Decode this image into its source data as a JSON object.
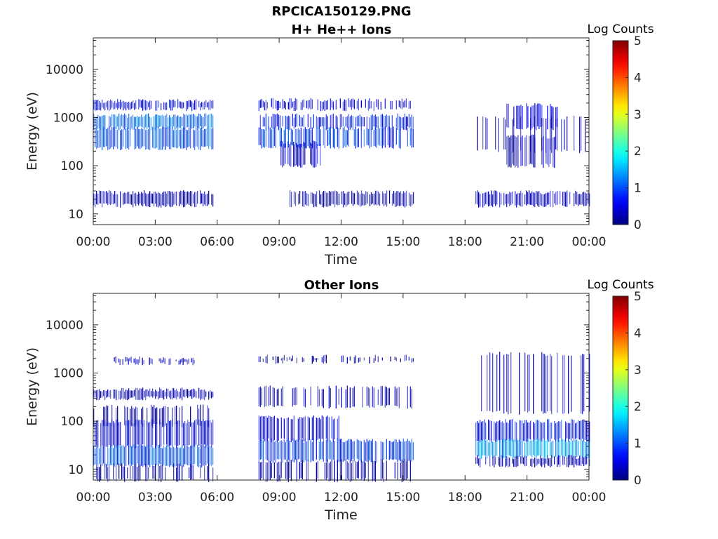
{
  "figure": {
    "title_line1": "RPCICA150129.PNG",
    "title_line2": "H+ He++ Ions"
  },
  "colormap": "jet",
  "chart_data": [
    {
      "type": "heatmap",
      "title": "H+ He++ Ions",
      "xlabel": "Time",
      "ylabel": "Energy (eV)",
      "y_scale": "log",
      "ylim": [
        6,
        45000
      ],
      "y_ticks": [
        "10",
        "100",
        "1000",
        "10000"
      ],
      "x_ticks": [
        "00:00",
        "03:00",
        "06:00",
        "09:00",
        "12:00",
        "15:00",
        "18:00",
        "21:00",
        "00:00"
      ],
      "xlim_hours": [
        0,
        24
      ],
      "colorbar": {
        "label": "Log Counts",
        "range": [
          0,
          5
        ],
        "ticks": [
          "0",
          "1",
          "2",
          "3",
          "4",
          "5"
        ]
      },
      "data_gaps_hours": [
        [
          5.8,
          8.0
        ],
        [
          15.5,
          18.5
        ]
      ],
      "bands": [
        {
          "t": [
            0.0,
            5.8
          ],
          "e": [
            1500,
            2200
          ],
          "level": 0.6,
          "density": 0.85
        },
        {
          "t": [
            0.0,
            5.8
          ],
          "e": [
            600,
            1100
          ],
          "level": 1.1,
          "density": 0.95
        },
        {
          "t": [
            0.0,
            5.8
          ],
          "e": [
            230,
            600
          ],
          "level": 1.0,
          "density": 0.9
        },
        {
          "t": [
            0.0,
            5.8
          ],
          "e": [
            15,
            28
          ],
          "level": 0.3,
          "density": 0.95
        },
        {
          "t": [
            8.0,
            15.5
          ],
          "e": [
            1500,
            2300
          ],
          "level": 0.5,
          "density": 0.6
        },
        {
          "t": [
            8.0,
            15.5
          ],
          "e": [
            600,
            1100
          ],
          "level": 0.7,
          "density": 0.8
        },
        {
          "t": [
            8.0,
            15.5
          ],
          "e": [
            250,
            600
          ],
          "level": 0.9,
          "density": 0.7
        },
        {
          "t": [
            9.0,
            11.0
          ],
          "e": [
            100,
            300
          ],
          "level": 0.3,
          "density": 0.6
        },
        {
          "t": [
            9.5,
            15.5
          ],
          "e": [
            15,
            28
          ],
          "level": 0.2,
          "density": 0.9
        },
        {
          "t": [
            18.5,
            24.0
          ],
          "e": [
            15,
            28
          ],
          "level": 0.4,
          "density": 0.9
        },
        {
          "t": [
            20.0,
            22.5
          ],
          "e": [
            100,
            400
          ],
          "level": 0.3,
          "density": 0.7
        },
        {
          "t": [
            20.0,
            22.5
          ],
          "e": [
            600,
            1800
          ],
          "level": 0.5,
          "density": 0.7
        },
        {
          "t": [
            18.5,
            24.0
          ],
          "e": [
            200,
            1000
          ],
          "level": 0.2,
          "density": 0.35
        }
      ]
    },
    {
      "type": "heatmap",
      "title": "Other Ions",
      "xlabel": "Time",
      "ylabel": "Energy (eV)",
      "y_scale": "log",
      "ylim": [
        6,
        45000
      ],
      "y_ticks": [
        "10",
        "100",
        "1000",
        "10000"
      ],
      "x_ticks": [
        "00:00",
        "03:00",
        "06:00",
        "09:00",
        "12:00",
        "15:00",
        "18:00",
        "21:00",
        "00:00"
      ],
      "xlim_hours": [
        0,
        24
      ],
      "colorbar": {
        "label": "Log Counts",
        "range": [
          0,
          5
        ],
        "ticks": [
          "0",
          "1",
          "2",
          "3",
          "4",
          "5"
        ]
      },
      "data_gaps_hours": [
        [
          5.8,
          8.0
        ],
        [
          15.5,
          18.5
        ]
      ],
      "bands": [
        {
          "t": [
            1.0,
            5.0
          ],
          "e": [
            1600,
            2000
          ],
          "level": 0.3,
          "density": 0.5
        },
        {
          "t": [
            0.0,
            5.8
          ],
          "e": [
            300,
            450
          ],
          "level": 0.3,
          "density": 0.9
        },
        {
          "t": [
            0.0,
            5.8
          ],
          "e": [
            80,
            200
          ],
          "level": 0.2,
          "density": 0.45
        },
        {
          "t": [
            0.0,
            5.8
          ],
          "e": [
            30,
            100
          ],
          "level": 0.6,
          "density": 0.85
        },
        {
          "t": [
            0.0,
            5.8
          ],
          "e": [
            12,
            30
          ],
          "level": 1.0,
          "density": 0.95
        },
        {
          "t": [
            0.0,
            5.8
          ],
          "e": [
            6,
            12
          ],
          "level": 0.2,
          "density": 0.5
        },
        {
          "t": [
            8.0,
            15.5
          ],
          "e": [
            1700,
            2200
          ],
          "level": 0.2,
          "density": 0.4
        },
        {
          "t": [
            8.0,
            15.5
          ],
          "e": [
            200,
            500
          ],
          "level": 0.3,
          "density": 0.45
        },
        {
          "t": [
            8.0,
            12.0
          ],
          "e": [
            40,
            120
          ],
          "level": 0.5,
          "density": 0.8
        },
        {
          "t": [
            8.0,
            15.5
          ],
          "e": [
            15,
            40
          ],
          "level": 0.9,
          "density": 0.9
        },
        {
          "t": [
            8.0,
            15.5
          ],
          "e": [
            6,
            15
          ],
          "level": 0.2,
          "density": 0.6
        },
        {
          "t": [
            18.5,
            24.0
          ],
          "e": [
            40,
            100
          ],
          "level": 0.7,
          "density": 0.9
        },
        {
          "t": [
            18.5,
            24.0
          ],
          "e": [
            18,
            40
          ],
          "level": 1.4,
          "density": 0.95
        },
        {
          "t": [
            18.5,
            24.0
          ],
          "e": [
            12,
            18
          ],
          "level": 0.3,
          "density": 0.8
        },
        {
          "t": [
            18.5,
            24.0
          ],
          "e": [
            150,
            2500
          ],
          "level": 0.3,
          "density": 0.45
        }
      ]
    }
  ]
}
